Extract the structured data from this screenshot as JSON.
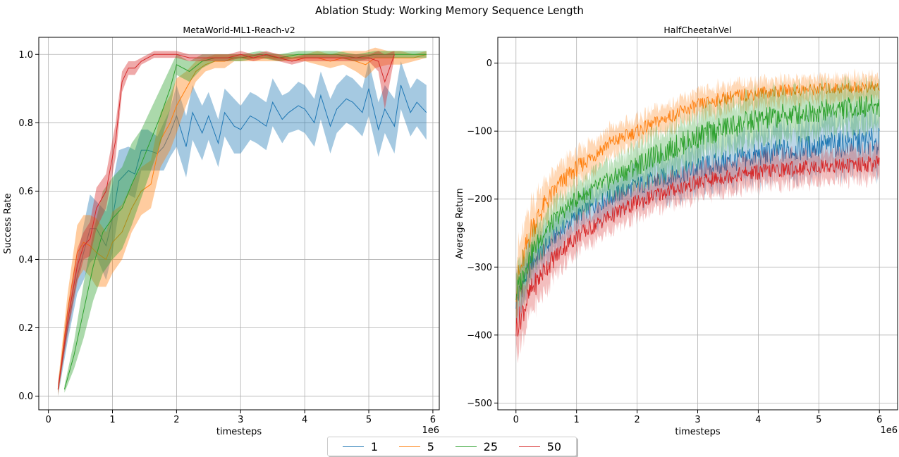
{
  "suptitle": "Ablation Study: Working Memory Sequence Length",
  "legend": [
    {
      "label": "1",
      "color": "#1f77b4"
    },
    {
      "label": "5",
      "color": "#ff7f0e"
    },
    {
      "label": "25",
      "color": "#2ca02c"
    },
    {
      "label": "50",
      "color": "#d62728"
    }
  ],
  "chart_data": [
    {
      "type": "line",
      "title": "MetaWorld-ML1-Reach-v2",
      "xlabel": "timesteps",
      "ylabel": "Success Rate",
      "x_offset_label": "1e6",
      "xlim": [
        -0.15,
        6.1
      ],
      "ylim": [
        -0.04,
        1.05
      ],
      "xticks": [
        0,
        1,
        2,
        3,
        4,
        5,
        6
      ],
      "xtick_labels": [
        "0",
        "1",
        "2",
        "3",
        "4",
        "5",
        "6"
      ],
      "yticks": [
        0.0,
        0.2,
        0.4,
        0.6,
        0.8,
        1.0
      ],
      "ytick_labels": [
        "0.0",
        "0.2",
        "0.4",
        "0.6",
        "0.8",
        "1.0"
      ],
      "grid": true,
      "series": [
        {
          "name": "1",
          "color": "#1f77b4",
          "x": [
            0.15,
            0.3,
            0.45,
            0.55,
            0.65,
            0.75,
            0.9,
            1.0,
            1.1,
            1.25,
            1.35,
            1.45,
            1.55,
            1.7,
            1.8,
            1.9,
            2.0,
            2.15,
            2.25,
            2.4,
            2.5,
            2.65,
            2.75,
            2.9,
            3.0,
            3.15,
            3.25,
            3.4,
            3.5,
            3.65,
            3.75,
            3.9,
            4.0,
            4.15,
            4.25,
            4.4,
            4.5,
            4.65,
            4.75,
            4.9,
            5.0,
            5.15,
            5.25,
            5.4,
            5.5,
            5.65,
            5.75,
            5.9
          ],
          "y": [
            0.02,
            0.2,
            0.35,
            0.42,
            0.49,
            0.49,
            0.44,
            0.52,
            0.63,
            0.66,
            0.65,
            0.72,
            0.72,
            0.71,
            0.73,
            0.77,
            0.82,
            0.73,
            0.83,
            0.77,
            0.82,
            0.74,
            0.83,
            0.79,
            0.78,
            0.82,
            0.81,
            0.79,
            0.86,
            0.81,
            0.83,
            0.85,
            0.84,
            0.8,
            0.88,
            0.79,
            0.84,
            0.87,
            0.86,
            0.83,
            0.9,
            0.78,
            0.84,
            0.79,
            0.91,
            0.83,
            0.86,
            0.83
          ],
          "band": [
            0.02,
            0.04,
            0.05,
            0.08,
            0.1,
            0.08,
            0.1,
            0.1,
            0.09,
            0.07,
            0.07,
            0.06,
            0.06,
            0.05,
            0.07,
            0.07,
            0.09,
            0.09,
            0.08,
            0.08,
            0.07,
            0.07,
            0.07,
            0.08,
            0.07,
            0.07,
            0.07,
            0.07,
            0.07,
            0.07,
            0.06,
            0.07,
            0.07,
            0.07,
            0.07,
            0.08,
            0.07,
            0.07,
            0.07,
            0.07,
            0.08,
            0.08,
            0.07,
            0.08,
            0.07,
            0.07,
            0.07,
            0.08
          ]
        },
        {
          "name": "5",
          "color": "#ff7f0e",
          "x": [
            0.15,
            0.3,
            0.45,
            0.55,
            0.65,
            0.75,
            0.9,
            1.0,
            1.15,
            1.3,
            1.45,
            1.6,
            1.75,
            1.9,
            2.0,
            2.15,
            2.3,
            2.45,
            2.6,
            2.75,
            2.9,
            3.0,
            3.2,
            3.4,
            3.6,
            3.8,
            4.0,
            4.2,
            4.4,
            4.6,
            4.8,
            4.95,
            5.1,
            5.3,
            5.5,
            5.7,
            5.9
          ],
          "y": [
            0.02,
            0.25,
            0.42,
            0.45,
            0.44,
            0.42,
            0.4,
            0.45,
            0.48,
            0.55,
            0.6,
            0.62,
            0.75,
            0.8,
            0.85,
            0.9,
            0.95,
            0.97,
            0.98,
            0.98,
            0.99,
            0.99,
            0.99,
            0.99,
            0.99,
            0.99,
            0.99,
            0.99,
            0.98,
            0.99,
            0.98,
            0.97,
            0.99,
            0.99,
            0.99,
            0.99,
            1.0
          ],
          "band": [
            0.02,
            0.05,
            0.08,
            0.08,
            0.09,
            0.1,
            0.08,
            0.09,
            0.08,
            0.07,
            0.07,
            0.07,
            0.08,
            0.08,
            0.08,
            0.05,
            0.03,
            0.02,
            0.02,
            0.02,
            0.01,
            0.01,
            0.01,
            0.01,
            0.01,
            0.01,
            0.01,
            0.02,
            0.02,
            0.02,
            0.03,
            0.04,
            0.03,
            0.02,
            0.02,
            0.01,
            0.01
          ]
        },
        {
          "name": "25",
          "color": "#2ca02c",
          "x": [
            0.25,
            0.4,
            0.55,
            0.7,
            0.85,
            1.0,
            1.15,
            1.3,
            1.45,
            1.6,
            1.75,
            1.9,
            2.0,
            2.2,
            2.4,
            2.6,
            2.8,
            3.0,
            3.3,
            3.6,
            3.9,
            4.2,
            4.5,
            4.8,
            5.1,
            5.4,
            5.7,
            5.9
          ],
          "y": [
            0.02,
            0.12,
            0.25,
            0.38,
            0.48,
            0.52,
            0.55,
            0.62,
            0.68,
            0.75,
            0.82,
            0.9,
            0.97,
            0.95,
            0.98,
            0.99,
            0.99,
            0.99,
            1.0,
            0.99,
            1.0,
            1.0,
            1.0,
            0.99,
            1.0,
            1.0,
            1.0,
            1.0
          ],
          "band": [
            0.01,
            0.04,
            0.08,
            0.1,
            0.12,
            0.12,
            0.12,
            0.12,
            0.1,
            0.09,
            0.08,
            0.06,
            0.03,
            0.03,
            0.02,
            0.01,
            0.01,
            0.01,
            0.01,
            0.01,
            0.01,
            0.01,
            0.01,
            0.01,
            0.01,
            0.01,
            0.01,
            0.01
          ]
        },
        {
          "name": "50",
          "color": "#d62728",
          "x": [
            0.15,
            0.3,
            0.45,
            0.55,
            0.65,
            0.75,
            0.9,
            1.05,
            1.15,
            1.25,
            1.35,
            1.45,
            1.55,
            1.65,
            1.75,
            1.85,
            2.0,
            2.2,
            2.4,
            2.6,
            2.8,
            3.0,
            3.2,
            3.4,
            3.6,
            3.8,
            4.0,
            4.2,
            4.4,
            4.6,
            4.8,
            5.0,
            5.15,
            5.25,
            5.4
          ],
          "y": [
            0.02,
            0.22,
            0.38,
            0.44,
            0.46,
            0.55,
            0.6,
            0.75,
            0.92,
            0.96,
            0.96,
            0.98,
            0.99,
            1.0,
            1.0,
            1.0,
            1.0,
            0.99,
            0.99,
            0.99,
            0.99,
            1.0,
            0.99,
            1.0,
            0.99,
            0.98,
            0.99,
            0.99,
            0.99,
            0.99,
            0.99,
            0.99,
            0.98,
            0.92,
            1.0
          ],
          "band": [
            0.01,
            0.04,
            0.05,
            0.04,
            0.05,
            0.06,
            0.05,
            0.05,
            0.03,
            0.02,
            0.02,
            0.01,
            0.01,
            0.01,
            0.01,
            0.01,
            0.01,
            0.01,
            0.01,
            0.01,
            0.01,
            0.01,
            0.01,
            0.01,
            0.01,
            0.01,
            0.01,
            0.01,
            0.01,
            0.01,
            0.01,
            0.01,
            0.03,
            0.08,
            0.01
          ]
        }
      ]
    },
    {
      "type": "line",
      "title": "HalfCheetahVel",
      "xlabel": "timesteps",
      "ylabel": "Average Return",
      "x_offset_label": "1e6",
      "xlim": [
        -0.3,
        6.3
      ],
      "ylim": [
        -510,
        38
      ],
      "xticks": [
        0,
        1,
        2,
        3,
        4,
        5,
        6
      ],
      "xtick_labels": [
        "0",
        "1",
        "2",
        "3",
        "4",
        "5",
        "6"
      ],
      "yticks": [
        -500,
        -400,
        -300,
        -200,
        -100,
        0
      ],
      "ytick_labels": [
        "−500",
        "−400",
        "−300",
        "−200",
        "−100",
        "0"
      ],
      "grid": true,
      "series": [
        {
          "name": "1",
          "color": "#1f77b4",
          "x": [
            0,
            0.25,
            0.5,
            0.75,
            1.0,
            1.5,
            2.0,
            2.5,
            3.0,
            3.5,
            4.0,
            4.5,
            5.0,
            5.5,
            6.0
          ],
          "y": [
            -350,
            -295,
            -270,
            -245,
            -225,
            -200,
            -180,
            -168,
            -155,
            -145,
            -135,
            -128,
            -122,
            -118,
            -115
          ],
          "band": [
            40,
            35,
            30,
            28,
            28,
            30,
            32,
            35,
            38,
            40,
            40,
            42,
            42,
            45,
            45
          ]
        },
        {
          "name": "5",
          "color": "#ff7f0e",
          "x": [
            0,
            0.25,
            0.5,
            0.75,
            1.0,
            1.5,
            2.0,
            2.5,
            3.0,
            3.5,
            4.0,
            4.5,
            5.0,
            5.5,
            6.0
          ],
          "y": [
            -330,
            -245,
            -205,
            -175,
            -155,
            -120,
            -100,
            -80,
            -62,
            -50,
            -44,
            -40,
            -38,
            -36,
            -35
          ],
          "band": [
            50,
            45,
            35,
            30,
            28,
            25,
            22,
            22,
            22,
            22,
            22,
            20,
            20,
            20,
            20
          ]
        },
        {
          "name": "25",
          "color": "#2ca02c",
          "x": [
            0,
            0.25,
            0.5,
            0.75,
            1.0,
            1.5,
            2.0,
            2.5,
            3.0,
            3.5,
            4.0,
            4.5,
            5.0,
            5.5,
            6.0
          ],
          "y": [
            -340,
            -280,
            -245,
            -220,
            -200,
            -175,
            -150,
            -128,
            -108,
            -94,
            -84,
            -76,
            -70,
            -66,
            -62
          ],
          "band": [
            40,
            35,
            30,
            28,
            28,
            30,
            35,
            38,
            40,
            40,
            40,
            40,
            38,
            38,
            38
          ]
        },
        {
          "name": "50",
          "color": "#d62728",
          "x": [
            0,
            0.25,
            0.5,
            0.75,
            1.0,
            1.5,
            2.0,
            2.5,
            3.0,
            3.5,
            4.0,
            4.5,
            5.0,
            5.5,
            6.0
          ],
          "y": [
            -390,
            -335,
            -300,
            -275,
            -255,
            -228,
            -205,
            -188,
            -176,
            -166,
            -160,
            -156,
            -152,
            -150,
            -148
          ],
          "band": [
            45,
            40,
            35,
            30,
            28,
            26,
            26,
            26,
            26,
            26,
            26,
            26,
            26,
            26,
            26
          ]
        }
      ]
    }
  ]
}
